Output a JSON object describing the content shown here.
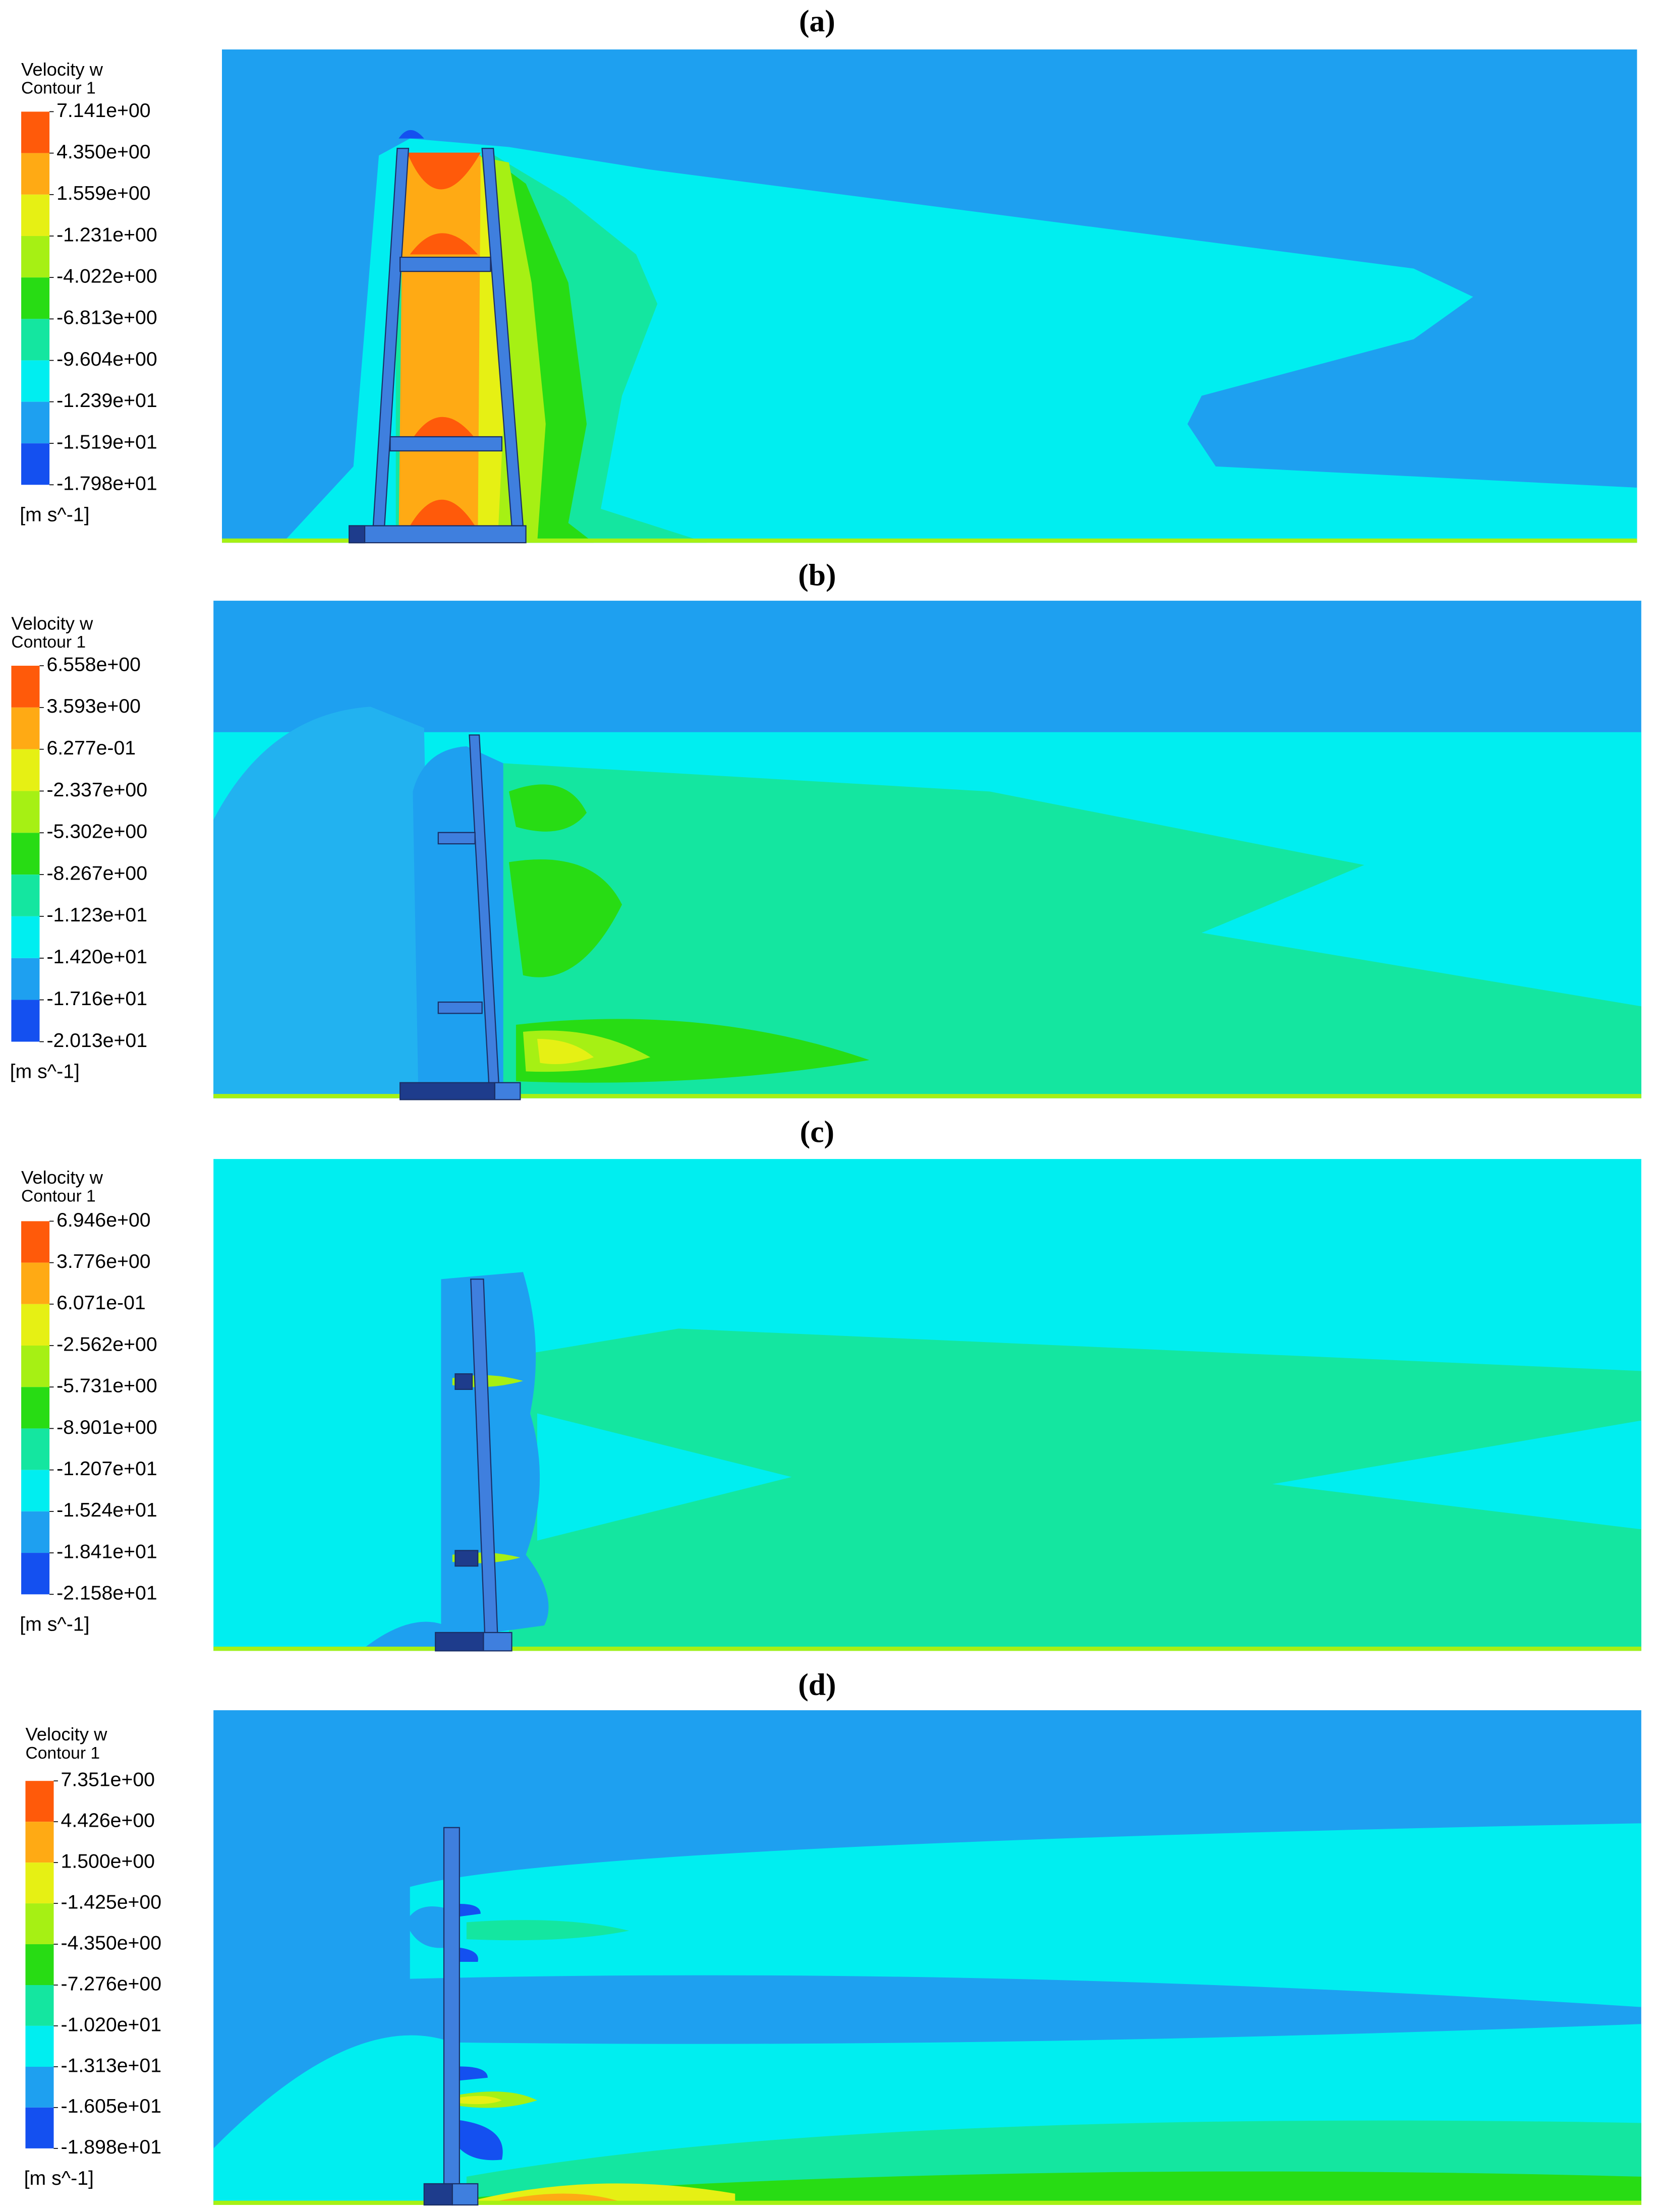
{
  "chart_data": [
    {
      "type": "contour",
      "title": "(a)",
      "legend_title": "Velocity w",
      "legend_subtitle": "Contour 1",
      "unit": "[m s^-1]",
      "colors": [
        "#ff5a0a",
        "#ffaa14",
        "#e6f014",
        "#a6f014",
        "#28dc14",
        "#14e6a0",
        "#00eef0",
        "#1ea0f0",
        "#1450f0"
      ],
      "colorbar_ticks": [
        {
          "value": 7.141,
          "label": "7.141e+00"
        },
        {
          "value": 4.35,
          "label": "4.350e+00"
        },
        {
          "value": 1.559,
          "label": "1.559e+00"
        },
        {
          "value": -1.231,
          "label": "-1.231e+00"
        },
        {
          "value": -4.022,
          "label": "-4.022e+00"
        },
        {
          "value": -6.813,
          "label": "-6.813e+00"
        },
        {
          "value": -9.604,
          "label": "-9.604e+00"
        },
        {
          "value": -12.39,
          "label": "-1.239e+01"
        },
        {
          "value": -15.19,
          "label": "-1.519e+01"
        },
        {
          "value": -17.98,
          "label": "-1.798e+01"
        }
      ]
    },
    {
      "type": "contour",
      "title": "(b)",
      "legend_title": "Velocity w",
      "legend_subtitle": "Contour 1",
      "unit": "[m s^-1]",
      "colors": [
        "#ff5a0a",
        "#ffaa14",
        "#e6f014",
        "#a6f014",
        "#28dc14",
        "#14e6a0",
        "#00eef0",
        "#1ea0f0",
        "#1450f0"
      ],
      "colorbar_ticks": [
        {
          "value": 6.558,
          "label": "6.558e+00"
        },
        {
          "value": 3.593,
          "label": "3.593e+00"
        },
        {
          "value": 0.6277,
          "label": "6.277e-01"
        },
        {
          "value": -2.337,
          "label": "-2.337e+00"
        },
        {
          "value": -5.302,
          "label": "-5.302e+00"
        },
        {
          "value": -8.267,
          "label": "-8.267e+00"
        },
        {
          "value": -11.23,
          "label": "-1.123e+01"
        },
        {
          "value": -14.2,
          "label": "-1.420e+01"
        },
        {
          "value": -17.16,
          "label": "-1.716e+01"
        },
        {
          "value": -20.13,
          "label": "-2.013e+01"
        }
      ]
    },
    {
      "type": "contour",
      "title": "(c)",
      "legend_title": "Velocity w",
      "legend_subtitle": "Contour 1",
      "unit": "[m s^-1]",
      "colors": [
        "#ff5a0a",
        "#ffaa14",
        "#e6f014",
        "#a6f014",
        "#28dc14",
        "#14e6a0",
        "#00eef0",
        "#1ea0f0",
        "#1450f0"
      ],
      "colorbar_ticks": [
        {
          "value": 6.946,
          "label": "6.946e+00"
        },
        {
          "value": 3.776,
          "label": "3.776e+00"
        },
        {
          "value": 0.6071,
          "label": "6.071e-01"
        },
        {
          "value": -2.562,
          "label": "-2.562e+00"
        },
        {
          "value": -5.731,
          "label": "-5.731e+00"
        },
        {
          "value": -8.901,
          "label": "-8.901e+00"
        },
        {
          "value": -12.07,
          "label": "-1.207e+01"
        },
        {
          "value": -15.24,
          "label": "-1.524e+01"
        },
        {
          "value": -18.41,
          "label": "-1.841e+01"
        },
        {
          "value": -21.58,
          "label": "-2.158e+01"
        }
      ]
    },
    {
      "type": "contour",
      "title": "(d)",
      "legend_title": "Velocity w",
      "legend_subtitle": "Contour 1",
      "unit": "[m s^-1]",
      "colors": [
        "#ff5a0a",
        "#ffaa14",
        "#e6f014",
        "#a6f014",
        "#28dc14",
        "#14e6a0",
        "#00eef0",
        "#1ea0f0",
        "#1450f0"
      ],
      "colorbar_ticks": [
        {
          "value": 7.351,
          "label": "7.351e+00"
        },
        {
          "value": 4.426,
          "label": "4.426e+00"
        },
        {
          "value": 1.5,
          "label": "1.500e+00"
        },
        {
          "value": -1.425,
          "label": "-1.425e+00"
        },
        {
          "value": -4.35,
          "label": "-4.350e+00"
        },
        {
          "value": -7.276,
          "label": "-7.276e+00"
        },
        {
          "value": -10.2,
          "label": "-1.020e+01"
        },
        {
          "value": -13.13,
          "label": "-1.313e+01"
        },
        {
          "value": -16.05,
          "label": "-1.605e+01"
        },
        {
          "value": -18.98,
          "label": "-1.898e+01"
        }
      ]
    }
  ]
}
